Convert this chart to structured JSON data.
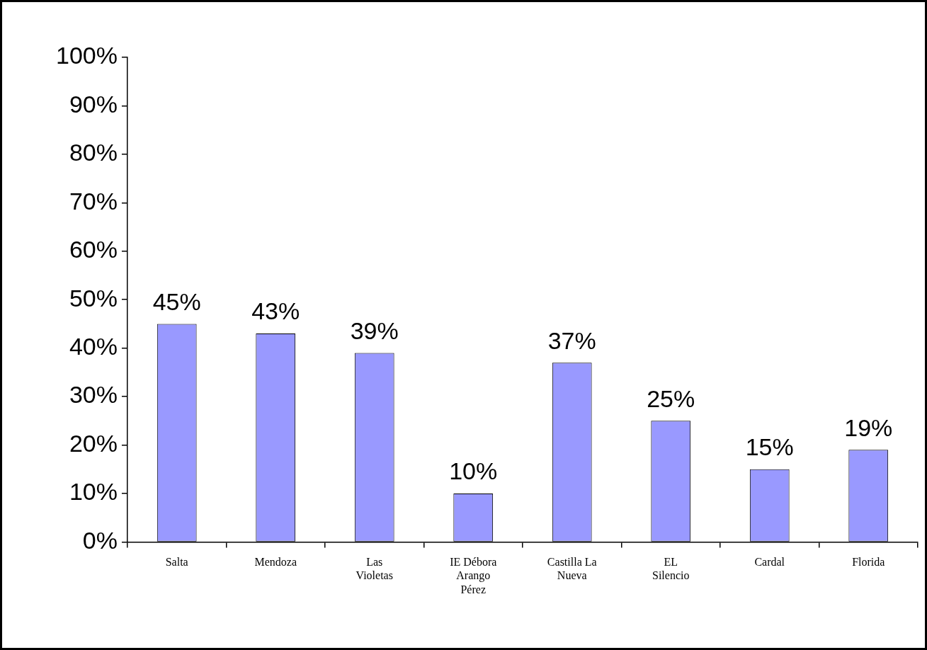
{
  "chart_data": {
    "type": "bar",
    "categories": [
      "Salta",
      "Mendoza",
      "Las Violetas",
      "IE Débora Arango Pérez",
      "Castilla La Nueva",
      "EL Silencio",
      "Cardal",
      "Florida"
    ],
    "values": [
      45,
      43,
      39,
      10,
      37,
      25,
      15,
      19
    ],
    "color": "#9999ff",
    "ylim": [
      0,
      100
    ],
    "yticks": [
      {
        "value": 0,
        "label": "0%"
      },
      {
        "value": 10,
        "label": "10%"
      },
      {
        "value": 20,
        "label": "20%"
      },
      {
        "value": 30,
        "label": "30%"
      },
      {
        "value": 40,
        "label": "40%"
      },
      {
        "value": 50,
        "label": "50%"
      },
      {
        "value": 60,
        "label": "60%"
      },
      {
        "value": 70,
        "label": "70%"
      },
      {
        "value": 80,
        "label": "80%"
      },
      {
        "value": 90,
        "label": "90%"
      },
      {
        "value": 100,
        "label": "100%"
      }
    ],
    "value_labels": [
      "45%",
      "43%",
      "39%",
      "10%",
      "37%",
      "25%",
      "15%",
      "19%"
    ],
    "legend": false
  }
}
